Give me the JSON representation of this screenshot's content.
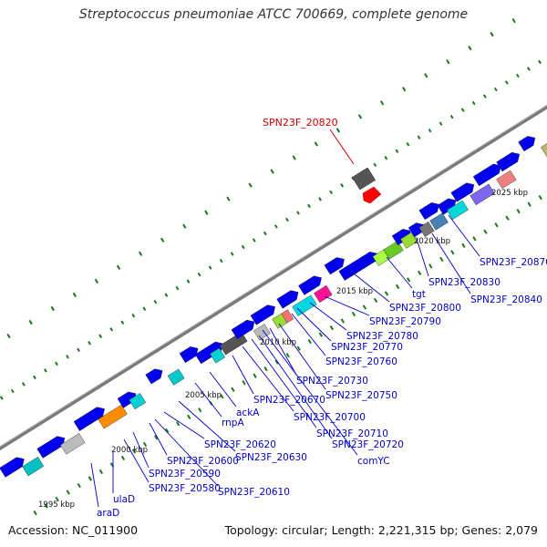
{
  "title": "Streptococcus pneumoniae ATCC 700669, complete genome",
  "footer": {
    "accession": "Accession: NC_011900",
    "topology": "Topology: circular; Length: 2,221,315 bp; Genes: 2,079"
  },
  "colors": {
    "gene_default": "#0000ee",
    "highlight": "#ff0000",
    "label": "#0000cc",
    "highlight_label": "#cc0000",
    "backbone": "#888888",
    "tick": "#1a7a1a"
  },
  "scale_labels": [
    "1995 kbp",
    "2000 kbp",
    "2005 kbp",
    "2010 kbp",
    "2015 kbp",
    "2020 kbp",
    "2025 kbp"
  ],
  "highlight_label": "SPN23F_20820",
  "gene_labels": [
    "araD",
    "ulaD",
    "SPN23F_20580",
    "SPN23F_20590",
    "SPN23F_20600",
    "SPN23F_20610",
    "SPN23F_20620",
    "SPN23F_20630",
    "rnpA",
    "ackA",
    "SPN23F_20670",
    "SPN23F_20700",
    "SPN23F_20710",
    "SPN23F_20720",
    "comYC",
    "SPN23F_20730",
    "SPN23F_20750",
    "SPN23F_20760",
    "SPN23F_20770",
    "SPN23F_20780",
    "SPN23F_20790",
    "SPN23F_20800",
    "tgt",
    "SPN23F_20830",
    "SPN23F_20840",
    "SPN23F_20870"
  ]
}
